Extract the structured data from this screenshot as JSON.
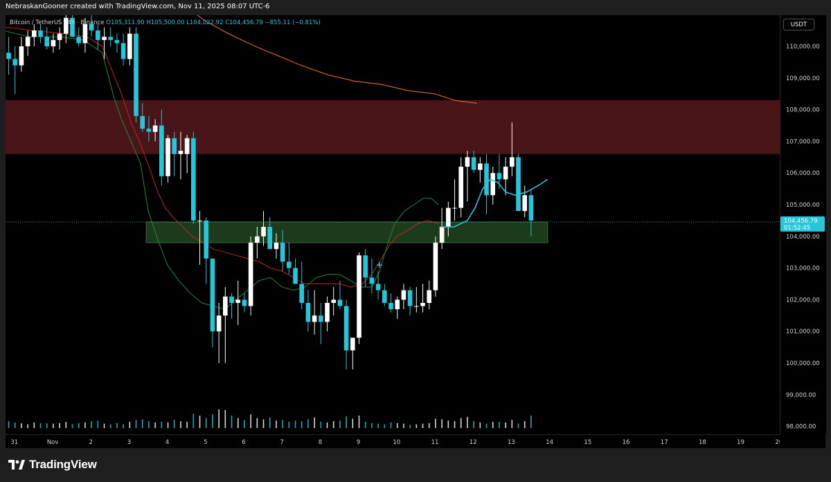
{
  "header": {
    "credit": "NebraskanGooner created with TradingView.com, Nov 11, 2025 08:07 UTC-6"
  },
  "legend": {
    "symbol": "Bitcoin / TetherUS · 4h · Binance",
    "open": "O105,311.90",
    "high": "H105,500.00",
    "low": "L104,022.92",
    "close": "C104,456.79",
    "change": "−855.11 (−0.81%)"
  },
  "price_scale": {
    "currency": "USDT",
    "current_price_label": "104,456.79",
    "countdown_label": "01:52:45"
  },
  "footer": {
    "logo_text": "TradingView"
  },
  "colors": {
    "up_candle": "#ffffff",
    "down_candle": "#26c6da",
    "resistance_zone": "#4a1518",
    "support_zone": "#1c3b1c",
    "ma_fast": "#1e8a3a",
    "ma_slow": "#c0281e",
    "ma_long": "#d4612a",
    "projection": "#26c6da"
  },
  "chart_data": {
    "type": "candlestick",
    "symbol": "BTC/USDT",
    "timeframe": "4h",
    "ylim": [
      97700,
      111400
    ],
    "y_ticks": [
      98000,
      99000,
      100000,
      101000,
      102000,
      103000,
      104000,
      105000,
      106000,
      107000,
      108000,
      109000,
      110000
    ],
    "y_tick_labels": [
      "98,000.00",
      "99,000.00",
      "100,000.00",
      "101,000.00",
      "102,000.00",
      "103,000.00",
      "104,000.00",
      "105,000.00",
      "106,000.00",
      "107,000.00",
      "108,000.00",
      "109,000.00",
      "110,000.00"
    ],
    "x_ticks": [
      {
        "label": "31",
        "day": -1
      },
      {
        "label": "Nov",
        "day": 0
      },
      {
        "label": "2",
        "day": 1
      },
      {
        "label": "3",
        "day": 2
      },
      {
        "label": "4",
        "day": 3
      },
      {
        "label": "5",
        "day": 4
      },
      {
        "label": "6",
        "day": 5
      },
      {
        "label": "7",
        "day": 6
      },
      {
        "label": "8",
        "day": 7
      },
      {
        "label": "9",
        "day": 8
      },
      {
        "label": "10",
        "day": 9
      },
      {
        "label": "11",
        "day": 10
      },
      {
        "label": "12",
        "day": 11
      },
      {
        "label": "13",
        "day": 12
      },
      {
        "label": "14",
        "day": 13
      },
      {
        "label": "15",
        "day": 14
      },
      {
        "label": "16",
        "day": 15
      },
      {
        "label": "17",
        "day": 16
      },
      {
        "label": "18",
        "day": 17
      },
      {
        "label": "19",
        "day": 18
      },
      {
        "label": "20",
        "day": 19
      }
    ],
    "candles_per_day": 6,
    "first_candle_day": -1.9,
    "candles": [
      [
        109100,
        109900,
        108900,
        109300
      ],
      [
        109300,
        110800,
        109100,
        110600
      ],
      [
        110600,
        111200,
        109700,
        110200
      ],
      [
        110200,
        110700,
        109600,
        109800
      ],
      [
        109800,
        110300,
        109100,
        109600
      ],
      [
        109600,
        110000,
        108500,
        109400
      ],
      [
        109400,
        110300,
        109200,
        110000
      ],
      [
        110000,
        110500,
        109700,
        110300
      ],
      [
        110300,
        110700,
        110000,
        110500
      ],
      [
        110500,
        110700,
        110100,
        110300
      ],
      [
        110300,
        110600,
        109900,
        110000
      ],
      [
        110000,
        110400,
        109800,
        110200
      ],
      [
        110200,
        110600,
        109900,
        110400
      ],
      [
        110400,
        111000,
        110100,
        110900
      ],
      [
        110900,
        111600,
        110400,
        110300
      ],
      [
        110300,
        110600,
        110000,
        110100
      ],
      [
        110100,
        110900,
        109800,
        110700
      ],
      [
        110700,
        111300,
        110300,
        110500
      ],
      [
        110500,
        110700,
        109900,
        110200
      ],
      [
        110200,
        110600,
        109600,
        110300
      ],
      [
        110300,
        110600,
        110000,
        110200
      ],
      [
        110200,
        110400,
        109800,
        110100
      ],
      [
        110100,
        110400,
        109400,
        109600
      ],
      [
        109600,
        110600,
        109400,
        110400
      ],
      [
        110400,
        110600,
        107600,
        107800
      ],
      [
        107800,
        108200,
        107300,
        107400
      ],
      [
        107400,
        107800,
        107000,
        107300
      ],
      [
        107300,
        107700,
        107000,
        107500
      ],
      [
        107500,
        108000,
        105600,
        105900
      ],
      [
        105900,
        107200,
        105700,
        107100
      ],
      [
        107100,
        107300,
        105900,
        106600
      ],
      [
        106600,
        107300,
        105800,
        106700
      ],
      [
        106600,
        107200,
        106000,
        107100
      ],
      [
        107100,
        107300,
        104400,
        104500
      ],
      [
        104500,
        104800,
        103100,
        104500
      ],
      [
        104500,
        104600,
        102500,
        103300
      ],
      [
        103300,
        103300,
        100500,
        101000
      ],
      [
        101000,
        101900,
        100000,
        101500
      ],
      [
        101500,
        102400,
        100000,
        102100
      ],
      [
        102100,
        102200,
        101400,
        101900
      ],
      [
        101900,
        102600,
        101200,
        102000
      ],
      [
        102000,
        102200,
        101600,
        101800
      ],
      [
        101800,
        104000,
        101500,
        103800
      ],
      [
        103800,
        104300,
        103300,
        104000
      ],
      [
        104000,
        104800,
        103700,
        104300
      ],
      [
        104300,
        104600,
        103600,
        103600
      ],
      [
        103600,
        104100,
        103300,
        103800
      ],
      [
        103800,
        104200,
        102900,
        103200
      ],
      [
        103200,
        103800,
        102800,
        103000
      ],
      [
        103000,
        103300,
        102500,
        102500
      ],
      [
        102500,
        103200,
        101700,
        101900
      ],
      [
        101900,
        102300,
        101000,
        101300
      ],
      [
        101300,
        102300,
        100900,
        101500
      ],
      [
        101500,
        101900,
        100600,
        101300
      ],
      [
        101300,
        102100,
        101000,
        101900
      ],
      [
        101900,
        102400,
        101500,
        102000
      ],
      [
        102000,
        102600,
        101700,
        101800
      ],
      [
        101800,
        102000,
        99800,
        100400
      ],
      [
        100400,
        100700,
        99800,
        100800
      ],
      [
        100800,
        103500,
        100600,
        103400
      ],
      [
        103400,
        103600,
        102400,
        102700
      ],
      [
        102700,
        103300,
        102200,
        102500
      ],
      [
        102500,
        102900,
        102000,
        102300
      ],
      [
        102300,
        102500,
        101800,
        101900
      ],
      [
        101900,
        102200,
        101600,
        101700
      ],
      [
        101700,
        102100,
        101400,
        102000
      ],
      [
        102000,
        102500,
        101700,
        102300
      ],
      [
        102300,
        102400,
        101500,
        101800
      ],
      [
        101800,
        102400,
        101600,
        101800
      ],
      [
        101800,
        102500,
        101600,
        101900
      ],
      [
        101900,
        102600,
        101700,
        102300
      ],
      [
        102300,
        104000,
        102100,
        103800
      ],
      [
        103800,
        104900,
        103600,
        104300
      ],
      [
        104300,
        105100,
        104000,
        104900
      ],
      [
        104900,
        105800,
        104500,
        104900
      ],
      [
        104900,
        106500,
        104600,
        106200
      ],
      [
        106200,
        106700,
        105100,
        106500
      ],
      [
        106500,
        106700,
        106000,
        106100
      ],
      [
        106100,
        106500,
        105700,
        106300
      ],
      [
        106300,
        106600,
        104700,
        105300
      ],
      [
        105300,
        106200,
        105000,
        106000
      ],
      [
        106000,
        106600,
        105500,
        105800
      ],
      [
        105800,
        106500,
        105300,
        106200
      ],
      [
        106200,
        107600,
        105900,
        106500
      ],
      [
        106500,
        106600,
        104800,
        104800
      ],
      [
        104800,
        105600,
        104600,
        105300
      ],
      [
        105300,
        105500,
        104000,
        104500
      ]
    ],
    "volume_max": 100,
    "volumes": [
      30,
      20,
      18,
      35,
      22,
      18,
      15,
      12,
      18,
      16,
      15,
      14,
      16,
      20,
      12,
      16,
      18,
      22,
      24,
      14,
      12,
      16,
      12,
      20,
      26,
      28,
      22,
      18,
      20,
      18,
      26,
      22,
      20,
      46,
      40,
      32,
      44,
      60,
      58,
      40,
      32,
      26,
      44,
      32,
      28,
      34,
      24,
      26,
      20,
      24,
      22,
      28,
      34,
      20,
      18,
      22,
      24,
      38,
      30,
      40,
      20,
      16,
      14,
      12,
      18,
      16,
      14,
      10,
      12,
      14,
      16,
      30,
      28,
      24,
      22,
      32,
      36,
      22,
      18,
      14,
      20,
      20,
      18,
      26,
      14,
      22,
      40
    ],
    "ma_fast": [
      [
        -1.3,
        110500
      ],
      [
        -0.6,
        110300
      ],
      [
        0.2,
        110300
      ],
      [
        0.8,
        110200
      ],
      [
        1.3,
        109800
      ],
      [
        1.6,
        108400
      ],
      [
        1.8,
        107700
      ],
      [
        2.05,
        107000
      ],
      [
        2.3,
        106300
      ],
      [
        2.5,
        104800
      ],
      [
        2.75,
        103900
      ],
      [
        3.0,
        103100
      ],
      [
        3.3,
        102600
      ],
      [
        3.6,
        102200
      ],
      [
        3.9,
        101900
      ],
      [
        4.2,
        101800
      ],
      [
        4.5,
        101700
      ],
      [
        4.8,
        102000
      ],
      [
        5.1,
        102300
      ],
      [
        5.4,
        102600
      ],
      [
        5.7,
        102700
      ],
      [
        6.0,
        102400
      ],
      [
        6.3,
        102300
      ],
      [
        6.6,
        102400
      ],
      [
        6.9,
        102700
      ],
      [
        7.2,
        102800
      ],
      [
        7.5,
        102800
      ],
      [
        7.8,
        102600
      ],
      [
        8.1,
        102400
      ],
      [
        8.35,
        102400
      ],
      [
        8.55,
        102900
      ],
      [
        8.75,
        103700
      ],
      [
        8.95,
        104400
      ],
      [
        9.2,
        104800
      ],
      [
        9.45,
        105000
      ],
      [
        9.7,
        105200
      ],
      [
        9.9,
        105200
      ],
      [
        10.1,
        105000
      ]
    ],
    "ma_slow": [
      [
        -1.8,
        110800
      ],
      [
        -1.2,
        110600
      ],
      [
        -0.5,
        110500
      ],
      [
        0.3,
        110400
      ],
      [
        0.9,
        110300
      ],
      [
        1.3,
        110000
      ],
      [
        1.6,
        109100
      ],
      [
        1.8,
        108500
      ],
      [
        2.05,
        107600
      ],
      [
        2.3,
        106900
      ],
      [
        2.55,
        106100
      ],
      [
        2.75,
        105400
      ],
      [
        2.95,
        104900
      ],
      [
        3.15,
        104600
      ],
      [
        3.4,
        104300
      ],
      [
        3.65,
        104000
      ],
      [
        3.95,
        103800
      ],
      [
        4.2,
        103600
      ],
      [
        4.5,
        103500
      ],
      [
        4.8,
        103400
      ],
      [
        5.1,
        103300
      ],
      [
        5.4,
        103200
      ],
      [
        5.7,
        103000
      ],
      [
        6.0,
        102900
      ],
      [
        6.3,
        102700
      ],
      [
        6.6,
        102500
      ],
      [
        6.9,
        102500
      ],
      [
        7.2,
        102500
      ],
      [
        7.5,
        102500
      ],
      [
        7.8,
        102400
      ],
      [
        8.1,
        102500
      ],
      [
        8.35,
        102800
      ],
      [
        8.6,
        103300
      ],
      [
        8.8,
        103700
      ],
      [
        9.0,
        104000
      ],
      [
        9.3,
        104200
      ],
      [
        9.55,
        104400
      ],
      [
        9.8,
        104500
      ],
      [
        10.1,
        104400
      ]
    ],
    "ma_long": [
      [
        3.3,
        111400
      ],
      [
        4.0,
        110800
      ],
      [
        4.6,
        110400
      ],
      [
        5.3,
        110000
      ],
      [
        5.9,
        109700
      ],
      [
        6.5,
        109400
      ],
      [
        7.2,
        109100
      ],
      [
        7.9,
        108900
      ],
      [
        8.6,
        108800
      ],
      [
        9.3,
        108600
      ],
      [
        10.0,
        108500
      ],
      [
        10.5,
        108300
      ],
      [
        11.1,
        108200
      ]
    ],
    "projection": [
      [
        10.15,
        104300
      ],
      [
        10.5,
        104300
      ],
      [
        10.85,
        104500
      ],
      [
        11.05,
        104900
      ],
      [
        11.25,
        105500
      ],
      [
        11.45,
        105800
      ],
      [
        11.65,
        105700
      ],
      [
        11.85,
        105400
      ],
      [
        12.1,
        105300
      ],
      [
        12.4,
        105400
      ],
      [
        12.7,
        105600
      ],
      [
        12.95,
        105800
      ]
    ],
    "resistance_zone": {
      "low": 106600,
      "high": 108300,
      "day_start": -1.9,
      "day_end": 20.5
    },
    "support_zone": {
      "low": 103800,
      "high": 104450,
      "day_start": 2.45,
      "day_end": 12.95
    },
    "current_price": 104456.79,
    "marker": {
      "day": 8.55,
      "price": 103100
    }
  }
}
